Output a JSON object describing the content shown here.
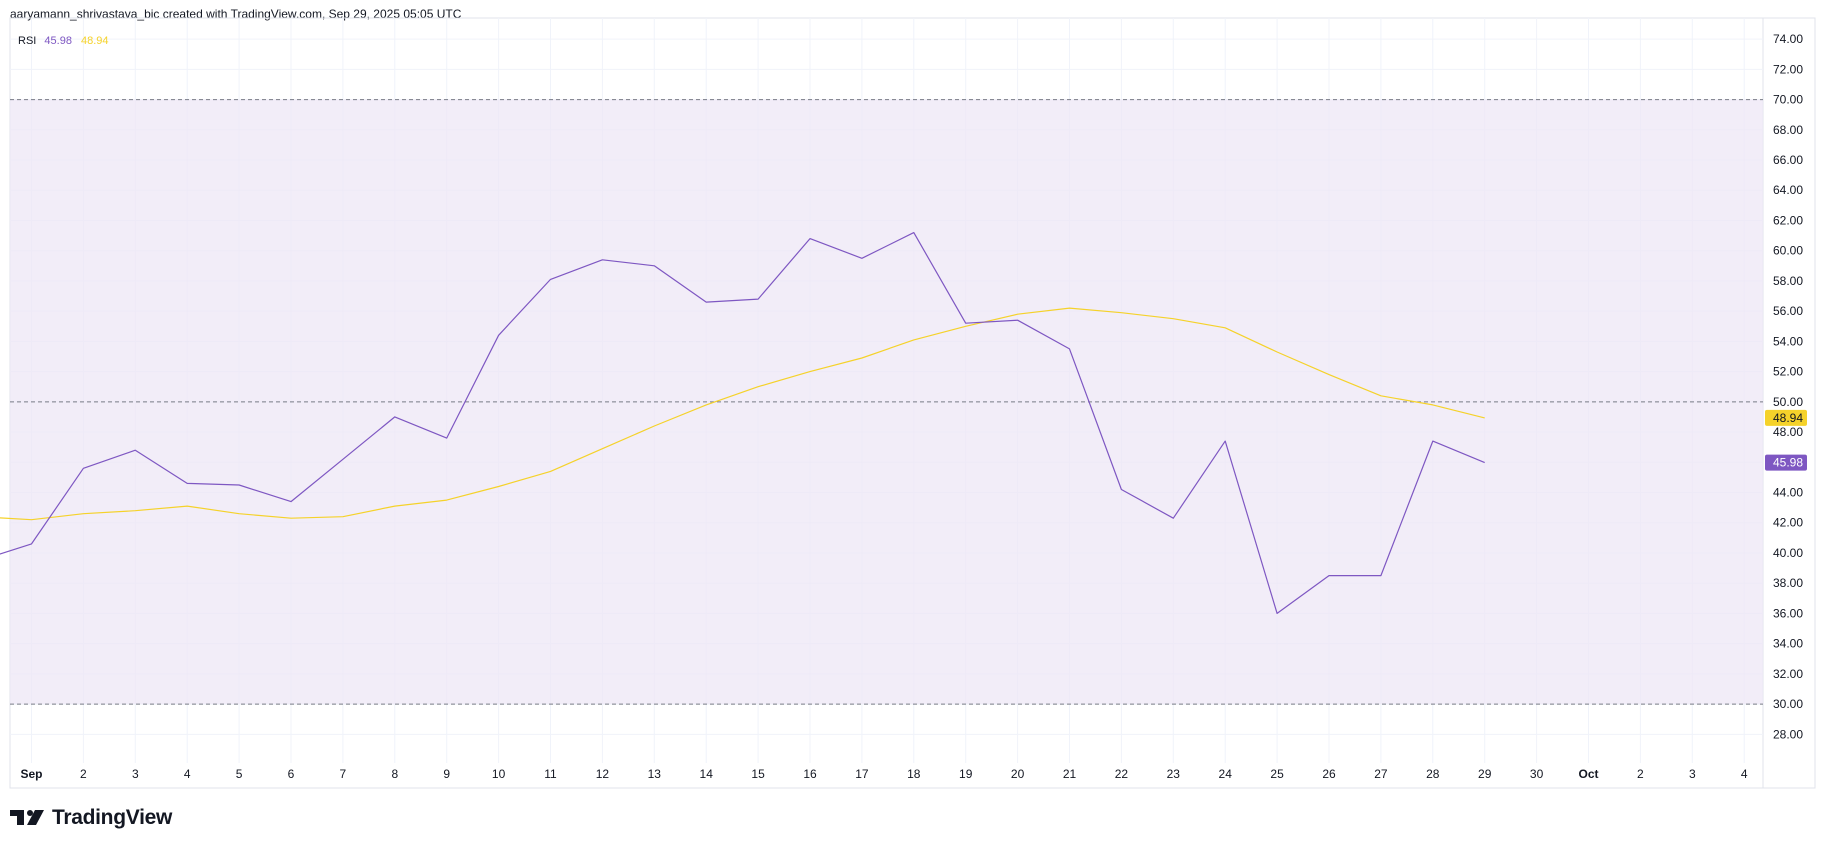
{
  "header": {
    "attribution": "aaryamann_shrivastava_bic created with TradingView.com, Sep 29, 2025 05:05 UTC"
  },
  "legend": {
    "indicator": "RSI",
    "rsi_value": "45.98",
    "ma_value": "48.94"
  },
  "brand": {
    "name": "TradingView"
  },
  "colors": {
    "rsi": "#7e57c2",
    "ma": "#f5d22a",
    "band": "#ede7f6",
    "grid": "#f0f3fa",
    "text": "#131722"
  },
  "chart_data": {
    "type": "line",
    "x_tick_labels": [
      "Sep",
      "2",
      "3",
      "4",
      "5",
      "6",
      "7",
      "8",
      "9",
      "10",
      "11",
      "12",
      "13",
      "14",
      "15",
      "16",
      "17",
      "18",
      "19",
      "20",
      "21",
      "22",
      "23",
      "24",
      "25",
      "26",
      "27",
      "28",
      "29",
      "30",
      "Oct",
      "2",
      "3",
      "4"
    ],
    "y_tick_labels": [
      "74.00",
      "72.00",
      "70.00",
      "68.00",
      "66.00",
      "64.00",
      "62.00",
      "60.00",
      "58.00",
      "56.00",
      "54.00",
      "52.00",
      "50.00",
      "48.00",
      "46.00",
      "44.00",
      "42.00",
      "40.00",
      "38.00",
      "36.00",
      "34.00",
      "32.00",
      "30.00",
      "28.00"
    ],
    "ylim": [
      26.5,
      75
    ],
    "levels": {
      "upper": 70,
      "middle": 50,
      "lower": 30
    },
    "grid": true,
    "last_value_labels": [
      "48.94",
      "45.98"
    ],
    "series": [
      {
        "name": "RSI",
        "x": [
          "Aug 31",
          "Sep 1",
          "Sep 2",
          "Sep 3",
          "Sep 4",
          "Sep 5",
          "Sep 6",
          "Sep 7",
          "Sep 8",
          "Sep 9",
          "Sep 10",
          "Sep 11",
          "Sep 12",
          "Sep 13",
          "Sep 14",
          "Sep 15",
          "Sep 16",
          "Sep 17",
          "Sep 18",
          "Sep 19",
          "Sep 20",
          "Sep 21",
          "Sep 22",
          "Sep 23",
          "Sep 24",
          "Sep 25",
          "Sep 26",
          "Sep 27",
          "Sep 28",
          "Sep 29"
        ],
        "values": [
          39.5,
          40.6,
          45.6,
          46.8,
          44.6,
          44.5,
          43.4,
          46.2,
          49.0,
          47.6,
          54.4,
          58.1,
          59.4,
          59.0,
          56.6,
          56.8,
          60.8,
          59.5,
          61.2,
          55.2,
          55.4,
          53.5,
          44.2,
          42.3,
          47.4,
          36.0,
          38.5,
          38.5,
          47.4,
          45.98
        ]
      },
      {
        "name": "RSI-based MA",
        "x": [
          "Aug 31",
          "Sep 1",
          "Sep 2",
          "Sep 3",
          "Sep 4",
          "Sep 5",
          "Sep 6",
          "Sep 7",
          "Sep 8",
          "Sep 9",
          "Sep 10",
          "Sep 11",
          "Sep 12",
          "Sep 13",
          "Sep 14",
          "Sep 15",
          "Sep 16",
          "Sep 17",
          "Sep 18",
          "Sep 19",
          "Sep 20",
          "Sep 21",
          "Sep 22",
          "Sep 23",
          "Sep 24",
          "Sep 25",
          "Sep 26",
          "Sep 27",
          "Sep 28",
          "Sep 29"
        ],
        "values": [
          42.4,
          42.2,
          42.6,
          42.8,
          43.1,
          42.6,
          42.3,
          42.4,
          43.1,
          43.5,
          44.4,
          45.4,
          46.9,
          48.4,
          49.8,
          51.0,
          52.0,
          52.9,
          54.1,
          55.0,
          55.8,
          56.2,
          55.9,
          55.5,
          54.9,
          53.3,
          51.8,
          50.4,
          49.8,
          48.94
        ]
      }
    ]
  }
}
